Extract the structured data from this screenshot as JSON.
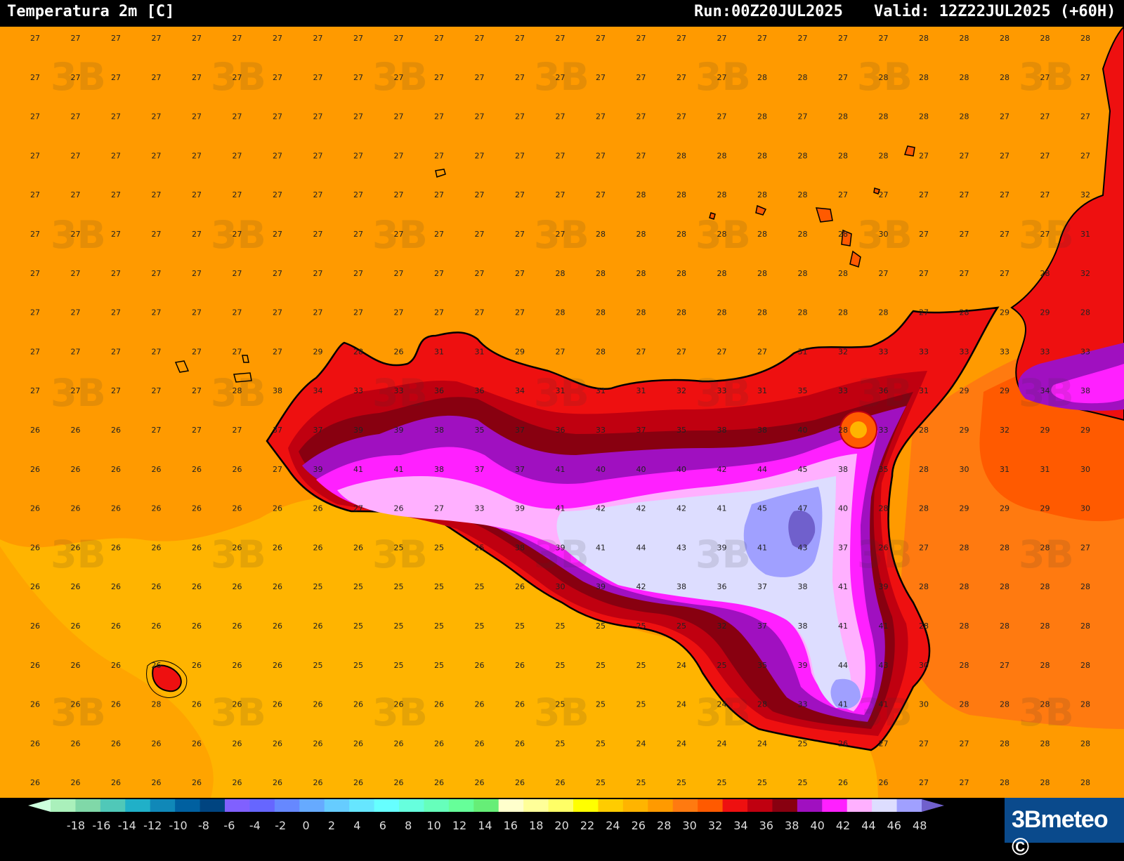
{
  "header": {
    "title": "Temperatura 2m [C]",
    "run": "Run:00Z20JUL2025",
    "valid": "Valid:  12Z22JUL2025 (+60H)"
  },
  "colors": {
    "sea_27": "#ff9a00",
    "sea_25": "#ffb400",
    "warm_28": "#ff7a10",
    "c30": "#ff5a00",
    "c32": "#ee1010",
    "c34": "#c00010",
    "c36": "#880010",
    "c38": "#a010c0",
    "c40": "#ff20ff",
    "c42": "#ffb0ff",
    "c44": "#ddddff",
    "c46": "#a0a0ff"
  },
  "legend": {
    "ticks": [
      "-18",
      "-16",
      "-14",
      "-12",
      "-10",
      "-8",
      "-6",
      "-4",
      "-2",
      "0",
      "2",
      "4",
      "6",
      "8",
      "10",
      "12",
      "14",
      "16",
      "18",
      "20",
      "22",
      "24",
      "26",
      "28",
      "30",
      "32",
      "34",
      "36",
      "38",
      "40",
      "42",
      "44",
      "46",
      "48"
    ],
    "colors": [
      "#ccffdd",
      "#aaf0bb",
      "#80d8a8",
      "#50c8b8",
      "#20b0c8",
      "#1088b8",
      "#0060a0",
      "#004480",
      "#8060ff",
      "#6666ff",
      "#6688ff",
      "#66aaff",
      "#66ccff",
      "#66e6ff",
      "#66ffff",
      "#66ffdd",
      "#66ffbb",
      "#66ff99",
      "#66ee77",
      "#ffffcc",
      "#ffff99",
      "#ffff66",
      "#ffff00",
      "#ffcc00",
      "#ffb400",
      "#ff9a00",
      "#ff7a10",
      "#ff5a00",
      "#ee1010",
      "#c00010",
      "#880010",
      "#a010c0",
      "#ff20ff",
      "#ffb0ff",
      "#ddddff",
      "#a0a0ff",
      "#7060cc"
    ]
  },
  "logo": {
    "text": "3Bmeteo ©"
  },
  "grid": {
    "rows": [
      {
        "v": [
          "27",
          "27",
          "27",
          "27",
          "27",
          "27",
          "27",
          "27",
          "27",
          "27",
          "27",
          "27",
          "27",
          "27",
          "27",
          "27",
          "27",
          "27",
          "27",
          "27",
          "27",
          "27",
          "28",
          "28",
          "28",
          "28",
          "28"
        ]
      },
      {
        "v": [
          "27",
          "27",
          "27",
          "27",
          "27",
          "27",
          "27",
          "27",
          "27",
          "27",
          "27",
          "27",
          "27",
          "27",
          "27",
          "27",
          "27",
          "27",
          "28",
          "28",
          "27",
          "28",
          "28",
          "28",
          "28",
          "27",
          "27"
        ]
      },
      {
        "v": [
          "27",
          "27",
          "27",
          "27",
          "27",
          "27",
          "27",
          "27",
          "27",
          "27",
          "27",
          "27",
          "27",
          "27",
          "27",
          "27",
          "27",
          "27",
          "28",
          "27",
          "28",
          "28",
          "28",
          "28",
          "27",
          "27",
          "27"
        ]
      },
      {
        "v": [
          "27",
          "27",
          "27",
          "27",
          "27",
          "27",
          "27",
          "27",
          "27",
          "27",
          "27",
          "27",
          "27",
          "27",
          "27",
          "27",
          "28",
          "28",
          "28",
          "28",
          "28",
          "28",
          "27",
          "27",
          "27",
          "27",
          "27"
        ]
      },
      {
        "v": [
          "27",
          "27",
          "27",
          "27",
          "27",
          "27",
          "27",
          "27",
          "27",
          "27",
          "27",
          "27",
          "27",
          "27",
          "27",
          "28",
          "28",
          "28",
          "28",
          "28",
          "27",
          "27",
          "27",
          "27",
          "27",
          "27",
          "32"
        ]
      },
      {
        "v": [
          "27",
          "27",
          "27",
          "27",
          "27",
          "27",
          "27",
          "27",
          "27",
          "27",
          "27",
          "27",
          "27",
          "27",
          "28",
          "28",
          "28",
          "28",
          "28",
          "28",
          "28",
          "30",
          "27",
          "27",
          "27",
          "27",
          "31"
        ]
      },
      {
        "v": [
          "27",
          "27",
          "27",
          "27",
          "27",
          "27",
          "27",
          "27",
          "27",
          "27",
          "27",
          "27",
          "27",
          "28",
          "28",
          "28",
          "28",
          "28",
          "28",
          "28",
          "28",
          "27",
          "27",
          "27",
          "27",
          "28",
          "32"
        ]
      },
      {
        "v": [
          "27",
          "27",
          "27",
          "27",
          "27",
          "27",
          "27",
          "27",
          "27",
          "27",
          "27",
          "27",
          "27",
          "28",
          "28",
          "28",
          "28",
          "28",
          "28",
          "28",
          "28",
          "28",
          "27",
          "28",
          "29",
          "29",
          "28"
        ]
      },
      {
        "v": [
          "27",
          "27",
          "27",
          "27",
          "27",
          "27",
          "27",
          "29",
          "28",
          "26",
          "31",
          "31",
          "29",
          "27",
          "28",
          "27",
          "27",
          "27",
          "27",
          "31",
          "32",
          "33",
          "33",
          "33",
          "33",
          "33",
          "33"
        ]
      },
      {
        "v": [
          "27",
          "27",
          "27",
          "27",
          "27",
          "28",
          "38",
          "34",
          "33",
          "33",
          "36",
          "36",
          "34",
          "31",
          "31",
          "31",
          "32",
          "33",
          "31",
          "35",
          "33",
          "36",
          "31",
          "29",
          "29",
          "34",
          "38"
        ]
      },
      {
        "v": [
          "26",
          "26",
          "26",
          "27",
          "27",
          "27",
          "37",
          "37",
          "39",
          "39",
          "38",
          "35",
          "37",
          "36",
          "33",
          "37",
          "35",
          "38",
          "38",
          "40",
          "28",
          "33",
          "28",
          "29",
          "32",
          "29",
          "29"
        ]
      },
      {
        "v": [
          "26",
          "26",
          "26",
          "26",
          "26",
          "26",
          "27",
          "39",
          "41",
          "41",
          "38",
          "37",
          "37",
          "41",
          "40",
          "40",
          "40",
          "42",
          "44",
          "45",
          "38",
          "35",
          "28",
          "30",
          "31",
          "31",
          "30"
        ]
      },
      {
        "v": [
          "26",
          "26",
          "26",
          "26",
          "26",
          "26",
          "26",
          "26",
          "27",
          "26",
          "27",
          "33",
          "39",
          "41",
          "42",
          "42",
          "42",
          "41",
          "45",
          "47",
          "40",
          "28",
          "28",
          "29",
          "29",
          "29",
          "30"
        ]
      },
      {
        "v": [
          "26",
          "26",
          "26",
          "26",
          "26",
          "26",
          "26",
          "26",
          "26",
          "25",
          "25",
          "25",
          "38",
          "39",
          "41",
          "44",
          "43",
          "39",
          "41",
          "43",
          "37",
          "26",
          "27",
          "28",
          "28",
          "28",
          "27"
        ]
      },
      {
        "v": [
          "26",
          "26",
          "26",
          "26",
          "26",
          "26",
          "26",
          "25",
          "25",
          "25",
          "25",
          "25",
          "26",
          "30",
          "39",
          "42",
          "38",
          "36",
          "37",
          "38",
          "41",
          "39",
          "28",
          "28",
          "28",
          "28",
          "28"
        ]
      },
      {
        "v": [
          "26",
          "26",
          "26",
          "26",
          "26",
          "26",
          "26",
          "26",
          "25",
          "25",
          "25",
          "25",
          "25",
          "25",
          "25",
          "25",
          "25",
          "32",
          "37",
          "38",
          "41",
          "41",
          "28",
          "28",
          "28",
          "28",
          "28"
        ]
      },
      {
        "v": [
          "26",
          "26",
          "26",
          "26",
          "26",
          "26",
          "26",
          "25",
          "25",
          "25",
          "25",
          "26",
          "26",
          "25",
          "25",
          "25",
          "24",
          "25",
          "35",
          "39",
          "44",
          "43",
          "30",
          "28",
          "27",
          "28",
          "28"
        ]
      },
      {
        "v": [
          "26",
          "26",
          "26",
          "28",
          "26",
          "26",
          "26",
          "26",
          "26",
          "26",
          "26",
          "26",
          "26",
          "25",
          "25",
          "25",
          "24",
          "24",
          "28",
          "33",
          "41",
          "41",
          "30",
          "28",
          "28",
          "28",
          "28"
        ]
      },
      {
        "v": [
          "26",
          "26",
          "26",
          "26",
          "26",
          "26",
          "26",
          "26",
          "26",
          "26",
          "26",
          "26",
          "26",
          "25",
          "25",
          "24",
          "24",
          "24",
          "24",
          "25",
          "26",
          "27",
          "27",
          "27",
          "28",
          "28",
          "28"
        ]
      },
      {
        "v": [
          "26",
          "26",
          "26",
          "26",
          "26",
          "26",
          "26",
          "26",
          "26",
          "26",
          "26",
          "26",
          "26",
          "26",
          "25",
          "25",
          "25",
          "25",
          "25",
          "25",
          "26",
          "26",
          "27",
          "27",
          "28",
          "28",
          "28"
        ]
      }
    ]
  }
}
